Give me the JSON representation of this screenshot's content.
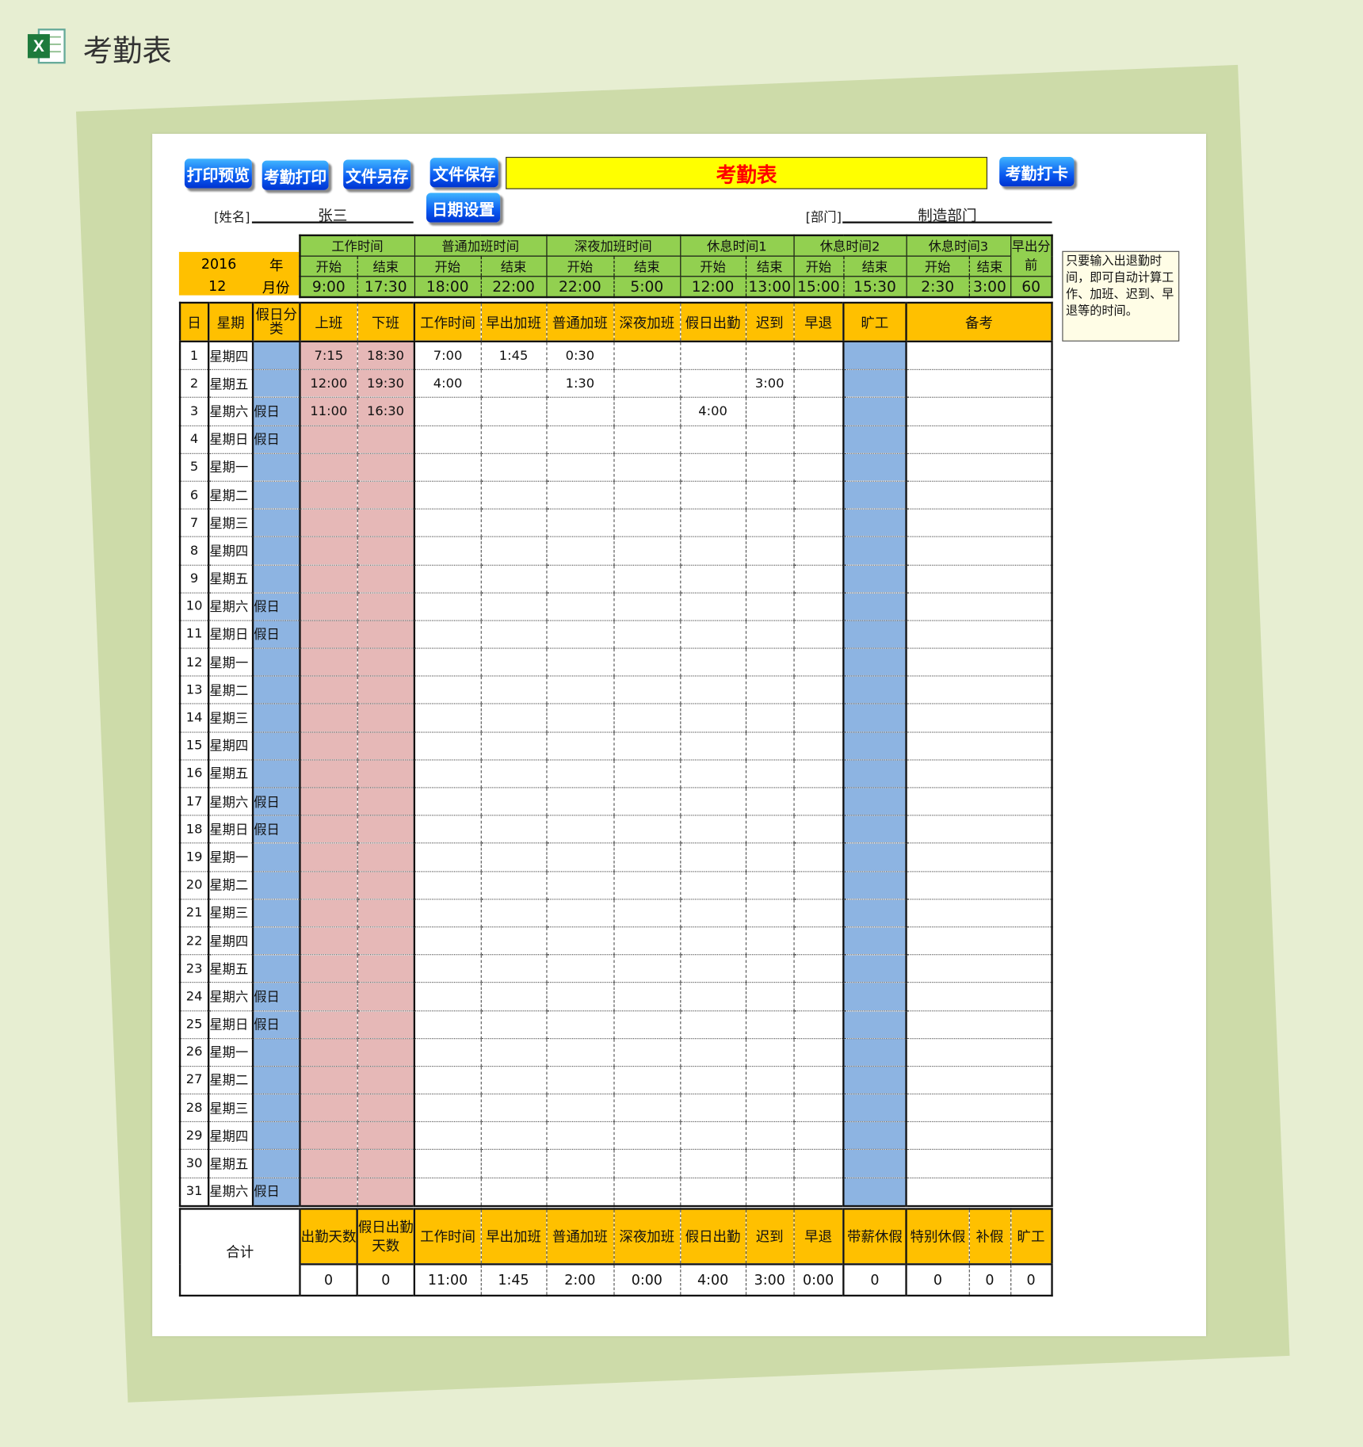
{
  "app": {
    "title": "考勤表",
    "icon": "excel-icon"
  },
  "toolbar": {
    "print_preview": "打印预览",
    "attendance_print": "考勤打印",
    "save_as": "文件另存",
    "save": "文件保存",
    "date_settings": "日期设置",
    "clock_in": "考勤打卡"
  },
  "sheet_title": "考勤表",
  "employee": {
    "name_label": "[姓名]",
    "name": "张三",
    "dept_label": "[部门]",
    "dept": "制造部门"
  },
  "period": {
    "year": "2016",
    "year_label": "年",
    "month": "12",
    "month_label": "月份"
  },
  "settings": {
    "groups": [
      "工作时间",
      "普通加班时间",
      "深夜加班时间",
      "休息时间1",
      "休息时间2",
      "休息时间3"
    ],
    "start_label": "开始",
    "end_label": "结束",
    "early_label": "早出分前",
    "values": [
      "9:00",
      "17:30",
      "18:00",
      "22:00",
      "22:00",
      "5:00",
      "12:00",
      "13:00",
      "15:00",
      "15:30",
      "2:30",
      "3:00"
    ],
    "early_minutes": "60"
  },
  "note": "只要输入出退勤时间，即可自动计算工作、加班、迟到、早退等的时间。",
  "main": {
    "headers": [
      "日",
      "星期",
      "假日分类",
      "上班",
      "下班",
      "工作时间",
      "早出加班",
      "普通加班",
      "深夜加班",
      "假日出勤",
      "迟到",
      "早退",
      "旷工",
      "备考"
    ],
    "rows": [
      {
        "day": "1",
        "weekday": "星期四",
        "holiday": "",
        "in": "7:15",
        "out": "18:30",
        "work": "7:00",
        "early_ot": "1:45",
        "normal_ot": "0:30",
        "night_ot": "",
        "holiday_work": "",
        "late": "",
        "leave_early": "",
        "absent": "",
        "remark": ""
      },
      {
        "day": "2",
        "weekday": "星期五",
        "holiday": "",
        "in": "12:00",
        "out": "19:30",
        "work": "4:00",
        "early_ot": "",
        "normal_ot": "1:30",
        "night_ot": "",
        "holiday_work": "",
        "late": "3:00",
        "leave_early": "",
        "absent": "",
        "remark": ""
      },
      {
        "day": "3",
        "weekday": "星期六",
        "holiday": "假日",
        "in": "11:00",
        "out": "16:30",
        "work": "",
        "early_ot": "",
        "normal_ot": "",
        "night_ot": "",
        "holiday_work": "4:00",
        "late": "",
        "leave_early": "",
        "absent": "",
        "remark": ""
      },
      {
        "day": "4",
        "weekday": "星期日",
        "holiday": "假日"
      },
      {
        "day": "5",
        "weekday": "星期一",
        "holiday": ""
      },
      {
        "day": "6",
        "weekday": "星期二",
        "holiday": ""
      },
      {
        "day": "7",
        "weekday": "星期三",
        "holiday": ""
      },
      {
        "day": "8",
        "weekday": "星期四",
        "holiday": ""
      },
      {
        "day": "9",
        "weekday": "星期五",
        "holiday": ""
      },
      {
        "day": "10",
        "weekday": "星期六",
        "holiday": "假日"
      },
      {
        "day": "11",
        "weekday": "星期日",
        "holiday": "假日"
      },
      {
        "day": "12",
        "weekday": "星期一",
        "holiday": ""
      },
      {
        "day": "13",
        "weekday": "星期二",
        "holiday": ""
      },
      {
        "day": "14",
        "weekday": "星期三",
        "holiday": ""
      },
      {
        "day": "15",
        "weekday": "星期四",
        "holiday": ""
      },
      {
        "day": "16",
        "weekday": "星期五",
        "holiday": ""
      },
      {
        "day": "17",
        "weekday": "星期六",
        "holiday": "假日"
      },
      {
        "day": "18",
        "weekday": "星期日",
        "holiday": "假日"
      },
      {
        "day": "19",
        "weekday": "星期一",
        "holiday": ""
      },
      {
        "day": "20",
        "weekday": "星期二",
        "holiday": ""
      },
      {
        "day": "21",
        "weekday": "星期三",
        "holiday": ""
      },
      {
        "day": "22",
        "weekday": "星期四",
        "holiday": ""
      },
      {
        "day": "23",
        "weekday": "星期五",
        "holiday": ""
      },
      {
        "day": "24",
        "weekday": "星期六",
        "holiday": "假日"
      },
      {
        "day": "25",
        "weekday": "星期日",
        "holiday": "假日"
      },
      {
        "day": "26",
        "weekday": "星期一",
        "holiday": ""
      },
      {
        "day": "27",
        "weekday": "星期二",
        "holiday": ""
      },
      {
        "day": "28",
        "weekday": "星期三",
        "holiday": ""
      },
      {
        "day": "29",
        "weekday": "星期四",
        "holiday": ""
      },
      {
        "day": "30",
        "weekday": "星期五",
        "holiday": ""
      },
      {
        "day": "31",
        "weekday": "星期六",
        "holiday": "假日"
      }
    ]
  },
  "summary": {
    "label": "合计",
    "headers": [
      "出勤天数",
      "假日出勤天数",
      "工作时间",
      "早出加班",
      "普通加班",
      "深夜加班",
      "假日出勤",
      "迟到",
      "早退",
      "带薪休假",
      "特别休假",
      "补假",
      "旷工"
    ],
    "values": [
      "0",
      "0",
      "11:00",
      "1:45",
      "2:00",
      "0:00",
      "4:00",
      "3:00",
      "0:00",
      "0",
      "0",
      "0",
      "0"
    ]
  },
  "colors": {
    "orange": "#ffc000",
    "green": "#92d050",
    "blue": "#8db4e2",
    "pink": "#e6b8b7",
    "title_bg": "#ffff00",
    "title_text": "#ff0000"
  }
}
